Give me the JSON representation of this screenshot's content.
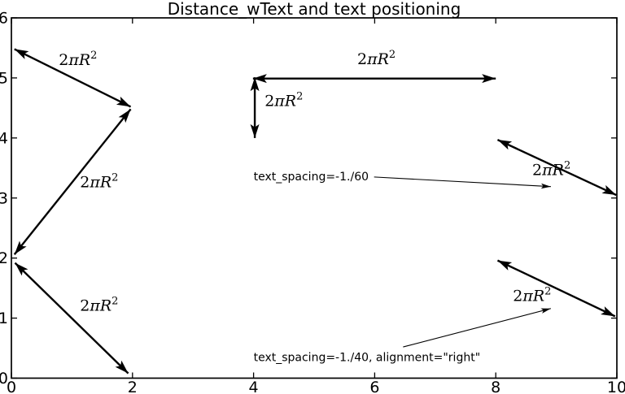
{
  "figure": {
    "background": "#ffffff",
    "foreground": "#000000"
  },
  "chart_data": {
    "type": "line",
    "title": "Distance_wText and text positioning",
    "xlim": [
      0,
      10
    ],
    "ylim": [
      0,
      6
    ],
    "x_ticks": [
      "0",
      "2",
      "4",
      "6",
      "8",
      "10"
    ],
    "y_ticks": [
      "0",
      "1",
      "2",
      "3",
      "4",
      "5",
      "6"
    ],
    "grid": false,
    "legend": false,
    "arrow_label": {
      "prefix": "2",
      "italic": "πR",
      "sup": "2"
    },
    "arrows": [
      {
        "name": "left-top",
        "x1": 0.05,
        "y1": 5.48,
        "x2": 1.97,
        "y2": 4.52,
        "label": {
          "x": 1.1,
          "y": 5.3
        }
      },
      {
        "name": "left-mid",
        "x1": 1.97,
        "y1": 4.48,
        "x2": 0.05,
        "y2": 2.06,
        "label": {
          "x": 1.45,
          "y": 3.27
        }
      },
      {
        "name": "left-bottom",
        "x1": 0.06,
        "y1": 1.92,
        "x2": 1.93,
        "y2": 0.08,
        "label": {
          "x": 1.45,
          "y": 1.21
        }
      },
      {
        "name": "horizontal",
        "x1": 3.99,
        "y1": 4.99,
        "x2": 8.0,
        "y2": 4.99,
        "label": {
          "x": 6.03,
          "y": 5.32
        }
      },
      {
        "name": "vertical",
        "x1": 4.02,
        "y1": 5.01,
        "x2": 4.02,
        "y2": 4.0,
        "label": {
          "x": 4.5,
          "y": 4.62
        }
      },
      {
        "name": "right-top",
        "x1": 8.03,
        "y1": 3.97,
        "x2": 9.99,
        "y2": 3.05,
        "label": {
          "x": 8.92,
          "y": 3.47
        }
      },
      {
        "name": "right-bottom",
        "x1": 8.03,
        "y1": 1.96,
        "x2": 9.97,
        "y2": 1.03,
        "label": {
          "x": 8.6,
          "y": 1.37
        }
      }
    ],
    "annotations": [
      {
        "text": "text_spacing=-1./60",
        "tx": 4.0,
        "ty": 3.36,
        "arrow": {
          "x1": 5.99,
          "y1": 3.35,
          "x2": 8.91,
          "y2": 3.19
        }
      },
      {
        "text": "text_spacing=-1./40, alignment=\"right\"",
        "tx": 4.0,
        "ty": 0.35,
        "arrow": {
          "x1": 6.47,
          "y1": 0.52,
          "x2": 8.91,
          "y2": 1.16
        }
      }
    ]
  }
}
